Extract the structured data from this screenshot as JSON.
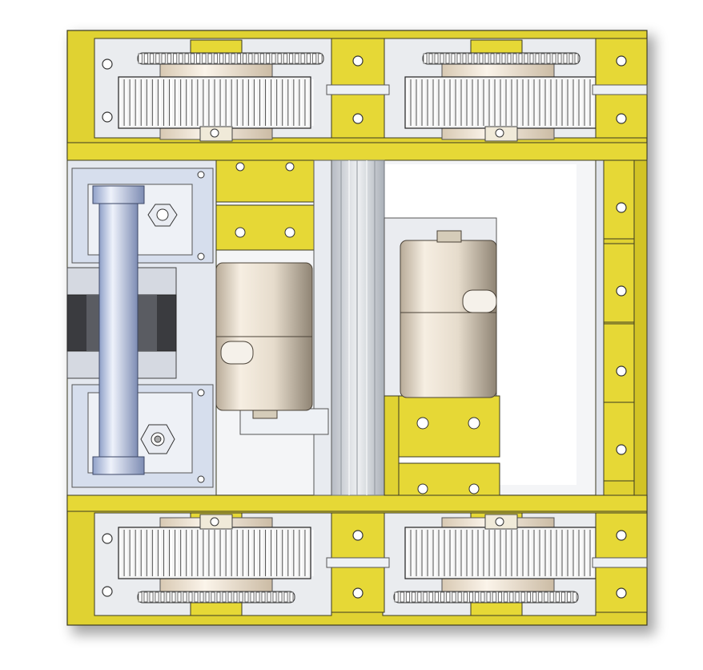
{
  "colors": {
    "frame_yellow": "#e0d232",
    "frame_yellow_dark": "#b9a91c",
    "frame_yellow_light": "#ece56e",
    "outline": "#3b3a22",
    "plate_grey": "#e4e7ec",
    "plate_blue": "#c9d3e6",
    "motor_cream": "#ece3d6",
    "gear_white": "#f2f2f2",
    "rail_silver": "#cfd3d8",
    "background": "#ffffff"
  },
  "parts": {
    "frame": "yellow-rectangular-chassis-frame",
    "gears": "spur-gear",
    "sprockets": "chain-sprocket",
    "motors": "cylindrical-gear-motor",
    "shaft": "vertical-drive-shaft",
    "rails": "aluminum-extrusion-rail",
    "bearings": "flange-bearing-block"
  }
}
